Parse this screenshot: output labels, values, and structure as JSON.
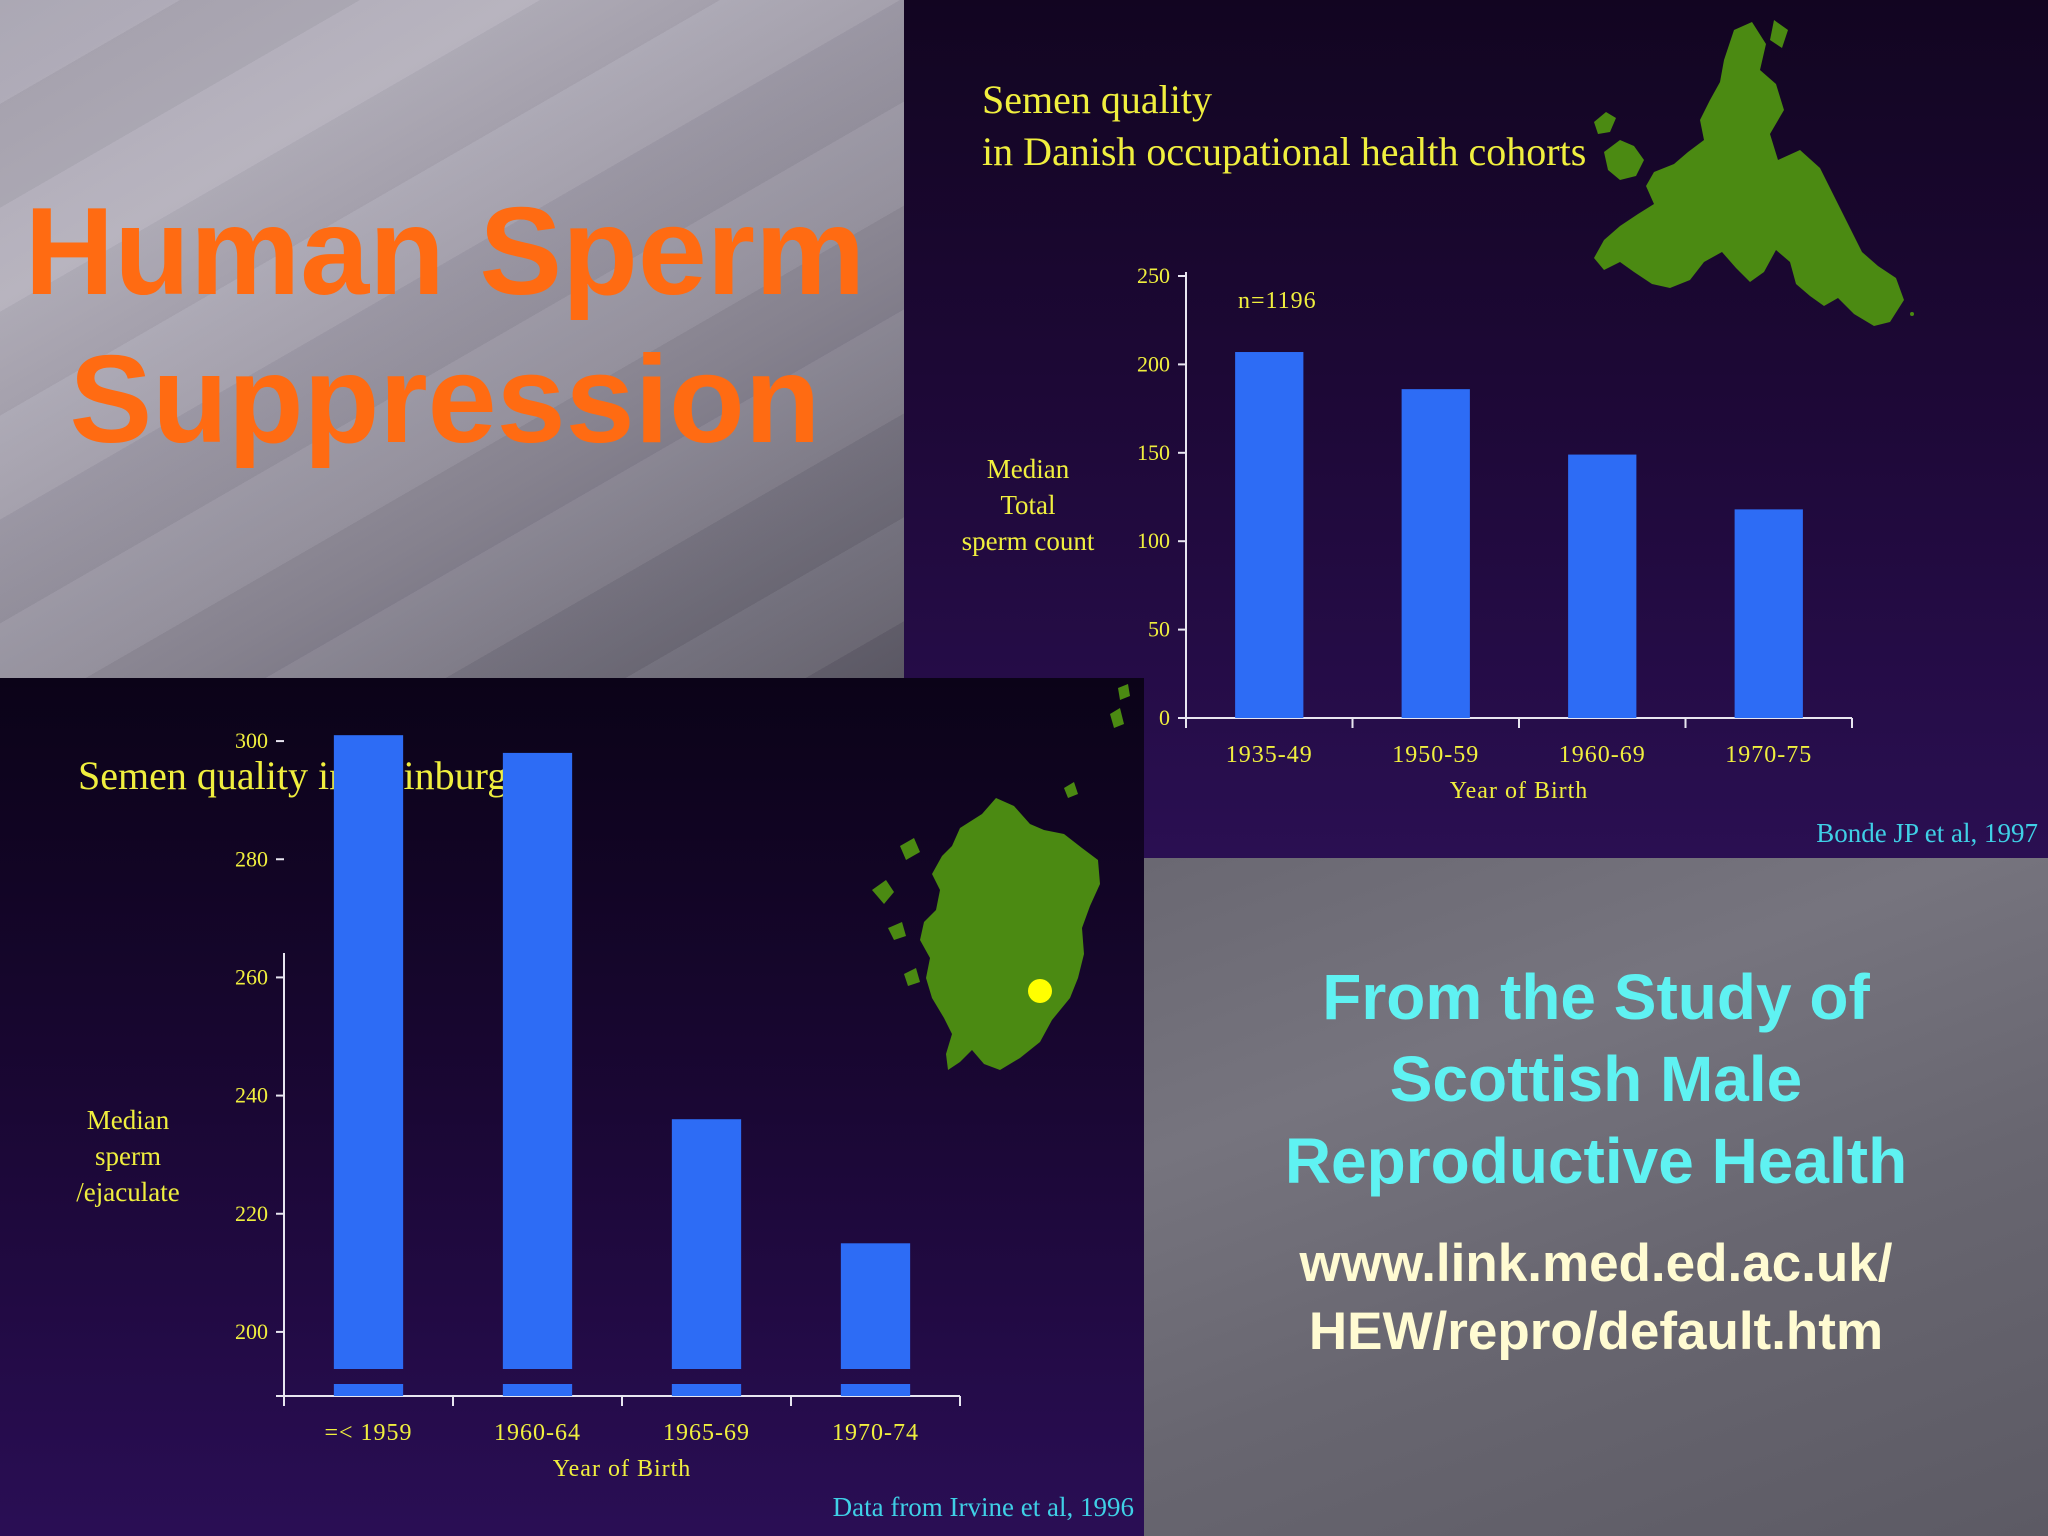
{
  "title_slide": {
    "line1": "Human Sperm",
    "line2": "Suppression"
  },
  "danish": {
    "title_line1": "Semen quality",
    "title_line2": "in Danish occupational health cohorts",
    "ylabel_line1": "Median Total",
    "ylabel_line2": "sperm count",
    "annotation": "n=1196",
    "source": "Bonde JP et al, 1997",
    "map_icon": "europe-map-icon"
  },
  "edinburgh": {
    "title": "Semen quality in Edinburgh",
    "ylabel_line1": "Median",
    "ylabel_line2": "sperm",
    "ylabel_line3": "/ejaculate",
    "source": "Data from Irvine et al, 1996",
    "map_icon": "scotland-map-icon"
  },
  "info": {
    "line1": "From the Study of",
    "line2": "Scottish Male",
    "line3": "Reproductive Health",
    "url_line1": "www.link.med.ed.ac.uk/",
    "url_line2": "HEW/repro/default.htm"
  },
  "colors": {
    "bar": "#2d6cf5",
    "text": "#f0ef3e",
    "map": "#4b8a12",
    "title": "#ff6b12",
    "cyan": "#5ff2f2"
  },
  "chart_data": [
    {
      "type": "bar",
      "title": "Semen quality in Danish occupational health cohorts",
      "xlabel": "Year of Birth",
      "ylabel": "Median Total sperm count",
      "categories": [
        "1935-49",
        "1950-59",
        "1960-69",
        "1970-75"
      ],
      "values": [
        207,
        186,
        149,
        118
      ],
      "ylim": [
        0,
        250
      ],
      "yticks": [
        0,
        50,
        100,
        150,
        200,
        250
      ],
      "grid": false,
      "legend": "none"
    },
    {
      "type": "bar",
      "title": "Semen quality in Edinburgh",
      "xlabel": "Year of Birth",
      "ylabel": "Median sperm /ejaculate",
      "categories": [
        "=< 1959",
        "1960-64",
        "1965-69",
        "1970-74"
      ],
      "values": [
        301,
        298,
        236,
        215
      ],
      "ylim": [
        190,
        310
      ],
      "yticks": [
        200,
        220,
        240,
        260,
        280,
        300
      ],
      "broken_axis": true,
      "grid": false,
      "legend": "none"
    }
  ]
}
